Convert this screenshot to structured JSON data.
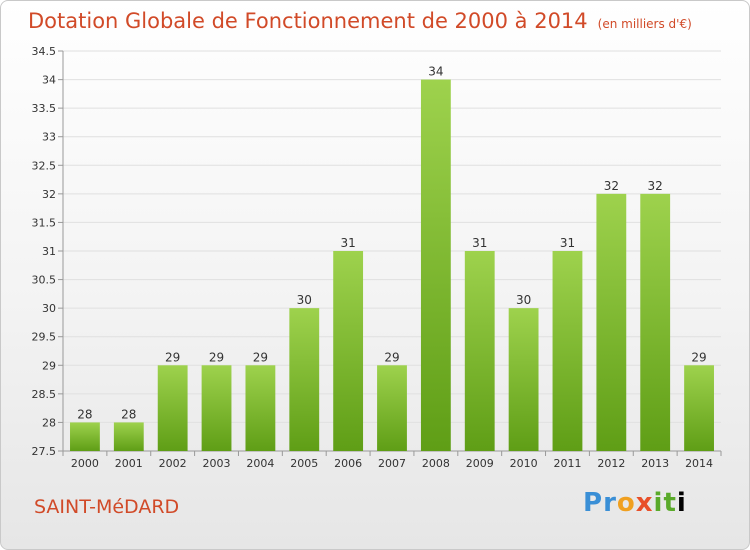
{
  "header": {
    "title": "Dotation Globale de Fonctionnement de 2000 à 2014",
    "unit": "(en milliers d'€)"
  },
  "footer": {
    "commune": "SAINT-MéDARD",
    "logo_letters": [
      "P",
      "r",
      "o",
      "x",
      "i",
      "t",
      "i"
    ]
  },
  "colors": {
    "title": "#d14a28",
    "bar_top": "#9ed24d",
    "bar_bottom": "#5f9e16",
    "grid": "#e0e0e0"
  },
  "chart_data": {
    "type": "bar",
    "title": "Dotation Globale de Fonctionnement de 2000 à 2014",
    "subtitle": "(en milliers d'€)",
    "categories": [
      "2000",
      "2001",
      "2002",
      "2003",
      "2004",
      "2005",
      "2006",
      "2007",
      "2008",
      "2009",
      "2010",
      "2011",
      "2012",
      "2013",
      "2014"
    ],
    "values": [
      28,
      28,
      29,
      29,
      29,
      30,
      31,
      29,
      34,
      31,
      30,
      31,
      32,
      32,
      29
    ],
    "data_labels": [
      "28",
      "28",
      "29",
      "29",
      "29",
      "30",
      "31",
      "29",
      "34",
      "31",
      "30",
      "31",
      "32",
      "32",
      "29"
    ],
    "ylim": [
      27.5,
      34.5
    ],
    "yticks": [
      "27.5",
      "28",
      "28.5",
      "29",
      "29.5",
      "30",
      "30.5",
      "31",
      "31.5",
      "32",
      "32.5",
      "33",
      "33.5",
      "34",
      "34.5"
    ],
    "xlabel": "",
    "ylabel": "",
    "grid": true,
    "legend": "none"
  }
}
